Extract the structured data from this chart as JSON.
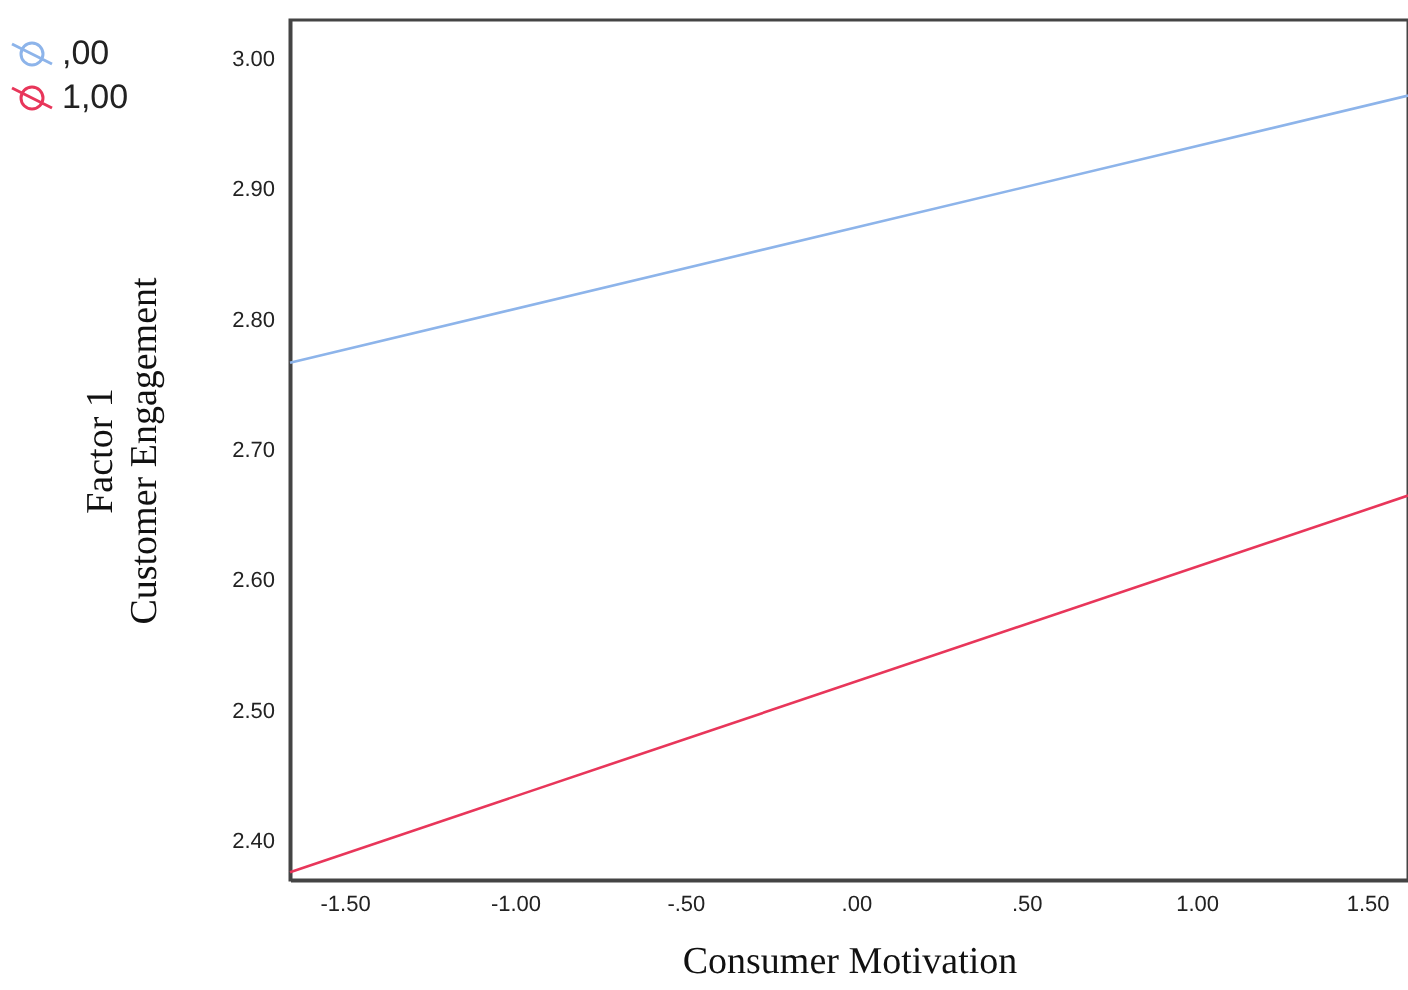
{
  "chart_data": {
    "type": "line",
    "xlabel": "Consumer Motivation",
    "ylabel": "Factor 1\nCustomer Engagement",
    "legend": "top left",
    "grid": false,
    "marker": "none",
    "line_style": "solid",
    "xlim": [
      -1.66,
      1.62
    ],
    "ylim": [
      2.37,
      3.03
    ],
    "xticks": [
      {
        "value": -1.5,
        "label": "-1.50"
      },
      {
        "value": -1,
        "label": "-1.00"
      },
      {
        "value": -0.5,
        "label": "-.50"
      },
      {
        "value": 0,
        "label": ".00"
      },
      {
        "value": 0.5,
        "label": ".50"
      },
      {
        "value": 1,
        "label": "1.00"
      },
      {
        "value": 1.5,
        "label": "1.50"
      }
    ],
    "yticks": [
      {
        "value": 2.4,
        "label": "2.40"
      },
      {
        "value": 2.5,
        "label": "2.50"
      },
      {
        "value": 2.6,
        "label": "2.60"
      },
      {
        "value": 2.7,
        "label": "2.70"
      },
      {
        "value": 2.8,
        "label": "2.80"
      },
      {
        "value": 2.9,
        "label": "2.90"
      },
      {
        "value": 3.0,
        "label": "3.00"
      }
    ],
    "x": [
      -1.66,
      1.62
    ],
    "series": [
      {
        "name": ",00",
        "color": "#8db4ea",
        "values": [
          2.767,
          2.972
        ]
      },
      {
        "name": "1,00",
        "color": "#e8365a",
        "values": [
          2.376,
          2.665
        ]
      }
    ]
  }
}
